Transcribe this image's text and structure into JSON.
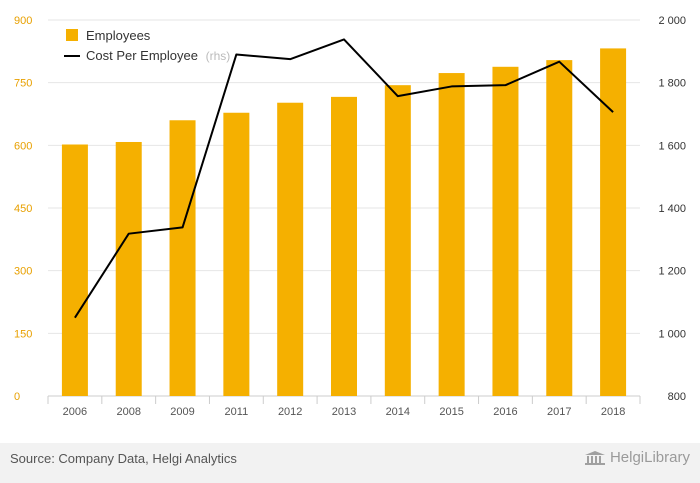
{
  "chart_data": {
    "type": "bar+line",
    "categories": [
      "2006",
      "2008",
      "2009",
      "2011",
      "2012",
      "2013",
      "2014",
      "2015",
      "2016",
      "2017",
      "2018"
    ],
    "series": [
      {
        "name": "Employees",
        "type": "bar",
        "axis": "left",
        "color": "#f5b000",
        "values": [
          602,
          608,
          660,
          678,
          702,
          716,
          744,
          773,
          788,
          804,
          832
        ]
      },
      {
        "name": "Cost Per Employee",
        "type": "line",
        "axis": "right",
        "color": "#000000",
        "values": [
          1050,
          1318,
          1338,
          1890,
          1875,
          1938,
          1757,
          1788,
          1792,
          1867,
          1706
        ]
      }
    ],
    "left_axis": {
      "min": 0,
      "max": 900,
      "ticks": [
        0,
        150,
        300,
        450,
        600,
        750,
        900
      ],
      "tick_labels": [
        "0",
        "150",
        "300",
        "450",
        "600",
        "750",
        "900"
      ]
    },
    "right_axis": {
      "min": 800,
      "max": 2000,
      "ticks": [
        800,
        1000,
        1200,
        1400,
        1600,
        1800,
        2000
      ],
      "tick_labels": [
        "800",
        "1 000",
        "1 200",
        "1 400",
        "1 600",
        "1 800",
        "2 000"
      ]
    },
    "legend": {
      "placement": "top-left",
      "items": [
        {
          "label": "Employees",
          "note": ""
        },
        {
          "label": "Cost Per Employee",
          "note": "(rhs)"
        }
      ]
    },
    "grid": true
  },
  "footer": {
    "source": "Source: Company Data, Helgi Analytics",
    "brand": "HelgiLibrary"
  },
  "icons": {
    "brand": "library-building-icon"
  }
}
